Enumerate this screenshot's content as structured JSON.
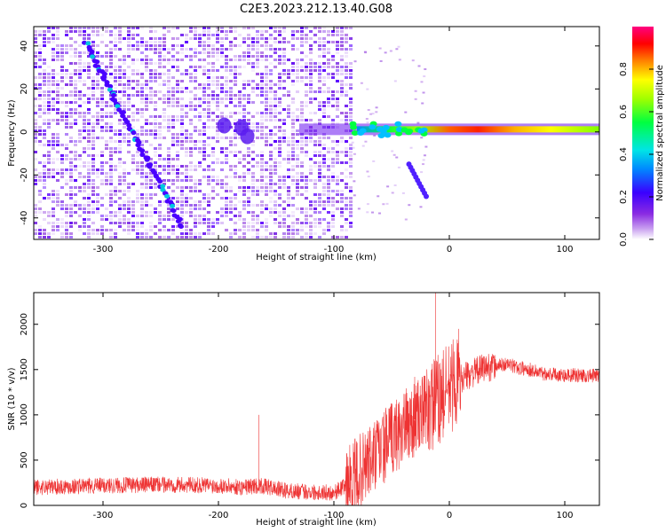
{
  "title": "C2E3.2023.212.13.40.G08",
  "chart_data": [
    {
      "type": "heatmap",
      "xlabel": "Height of straight line (km)",
      "ylabel": "Frequency (Hz)",
      "xlim": [
        -360,
        130
      ],
      "ylim": [
        -50,
        49
      ],
      "xticks": [
        -300,
        -200,
        -100,
        0,
        100
      ],
      "yticks": [
        -40,
        -20,
        0,
        20,
        40
      ],
      "colorbar": {
        "label": "Normalized spectral amplitude",
        "range": [
          0,
          1
        ],
        "ticks": [
          0.0,
          0.2,
          0.4,
          0.6,
          0.8
        ],
        "colormap": [
          "#ffffff",
          "#c9a0f0",
          "#8a2be2",
          "#3a00ff",
          "#0088ff",
          "#00e5e5",
          "#00ff40",
          "#a0ff00",
          "#ffff00",
          "#ff8000",
          "#ff0000",
          "#ff0080"
        ]
      },
      "features": {
        "noise_region_x": [
          -360,
          -85
        ],
        "descending_line": {
          "x": [
            -315,
            -275,
            -230
          ],
          "y": [
            42,
            0,
            -45
          ]
        },
        "main_tone": {
          "x": [
            -130,
            130
          ],
          "y": [
            1,
            1
          ]
        },
        "side_branch": {
          "x": [
            -35,
            -20
          ],
          "y": [
            -15,
            -30
          ]
        }
      }
    },
    {
      "type": "line",
      "xlabel": "Height of straight line (km)",
      "ylabel": "SNR (10 * v/v)",
      "xlim": [
        -360,
        130
      ],
      "ylim": [
        0,
        2350
      ],
      "xticks": [
        -300,
        -200,
        -100,
        0,
        100
      ],
      "yticks": [
        0,
        500,
        1000,
        1500,
        2000
      ],
      "color": "#ee3333",
      "series": [
        {
          "x": [
            -360,
            -300,
            -250,
            -200,
            -180,
            -165,
            -140,
            -100,
            -90,
            -75,
            -60,
            -45,
            -30,
            -20,
            -10,
            0,
            10,
            20,
            30,
            40,
            50,
            60,
            70,
            80,
            100,
            130
          ],
          "y": [
            200,
            220,
            230,
            220,
            200,
            220,
            160,
            140,
            220,
            400,
            600,
            800,
            950,
            1050,
            1150,
            1300,
            1400,
            1460,
            1520,
            1540,
            1560,
            1520,
            1500,
            1460,
            1440,
            1430
          ]
        }
      ],
      "spikes": [
        {
          "x": -165,
          "y": 1000
        },
        {
          "x": -30,
          "y": 1420
        },
        {
          "x": -12,
          "y": 2350
        },
        {
          "x": 8,
          "y": 1950
        }
      ]
    }
  ]
}
